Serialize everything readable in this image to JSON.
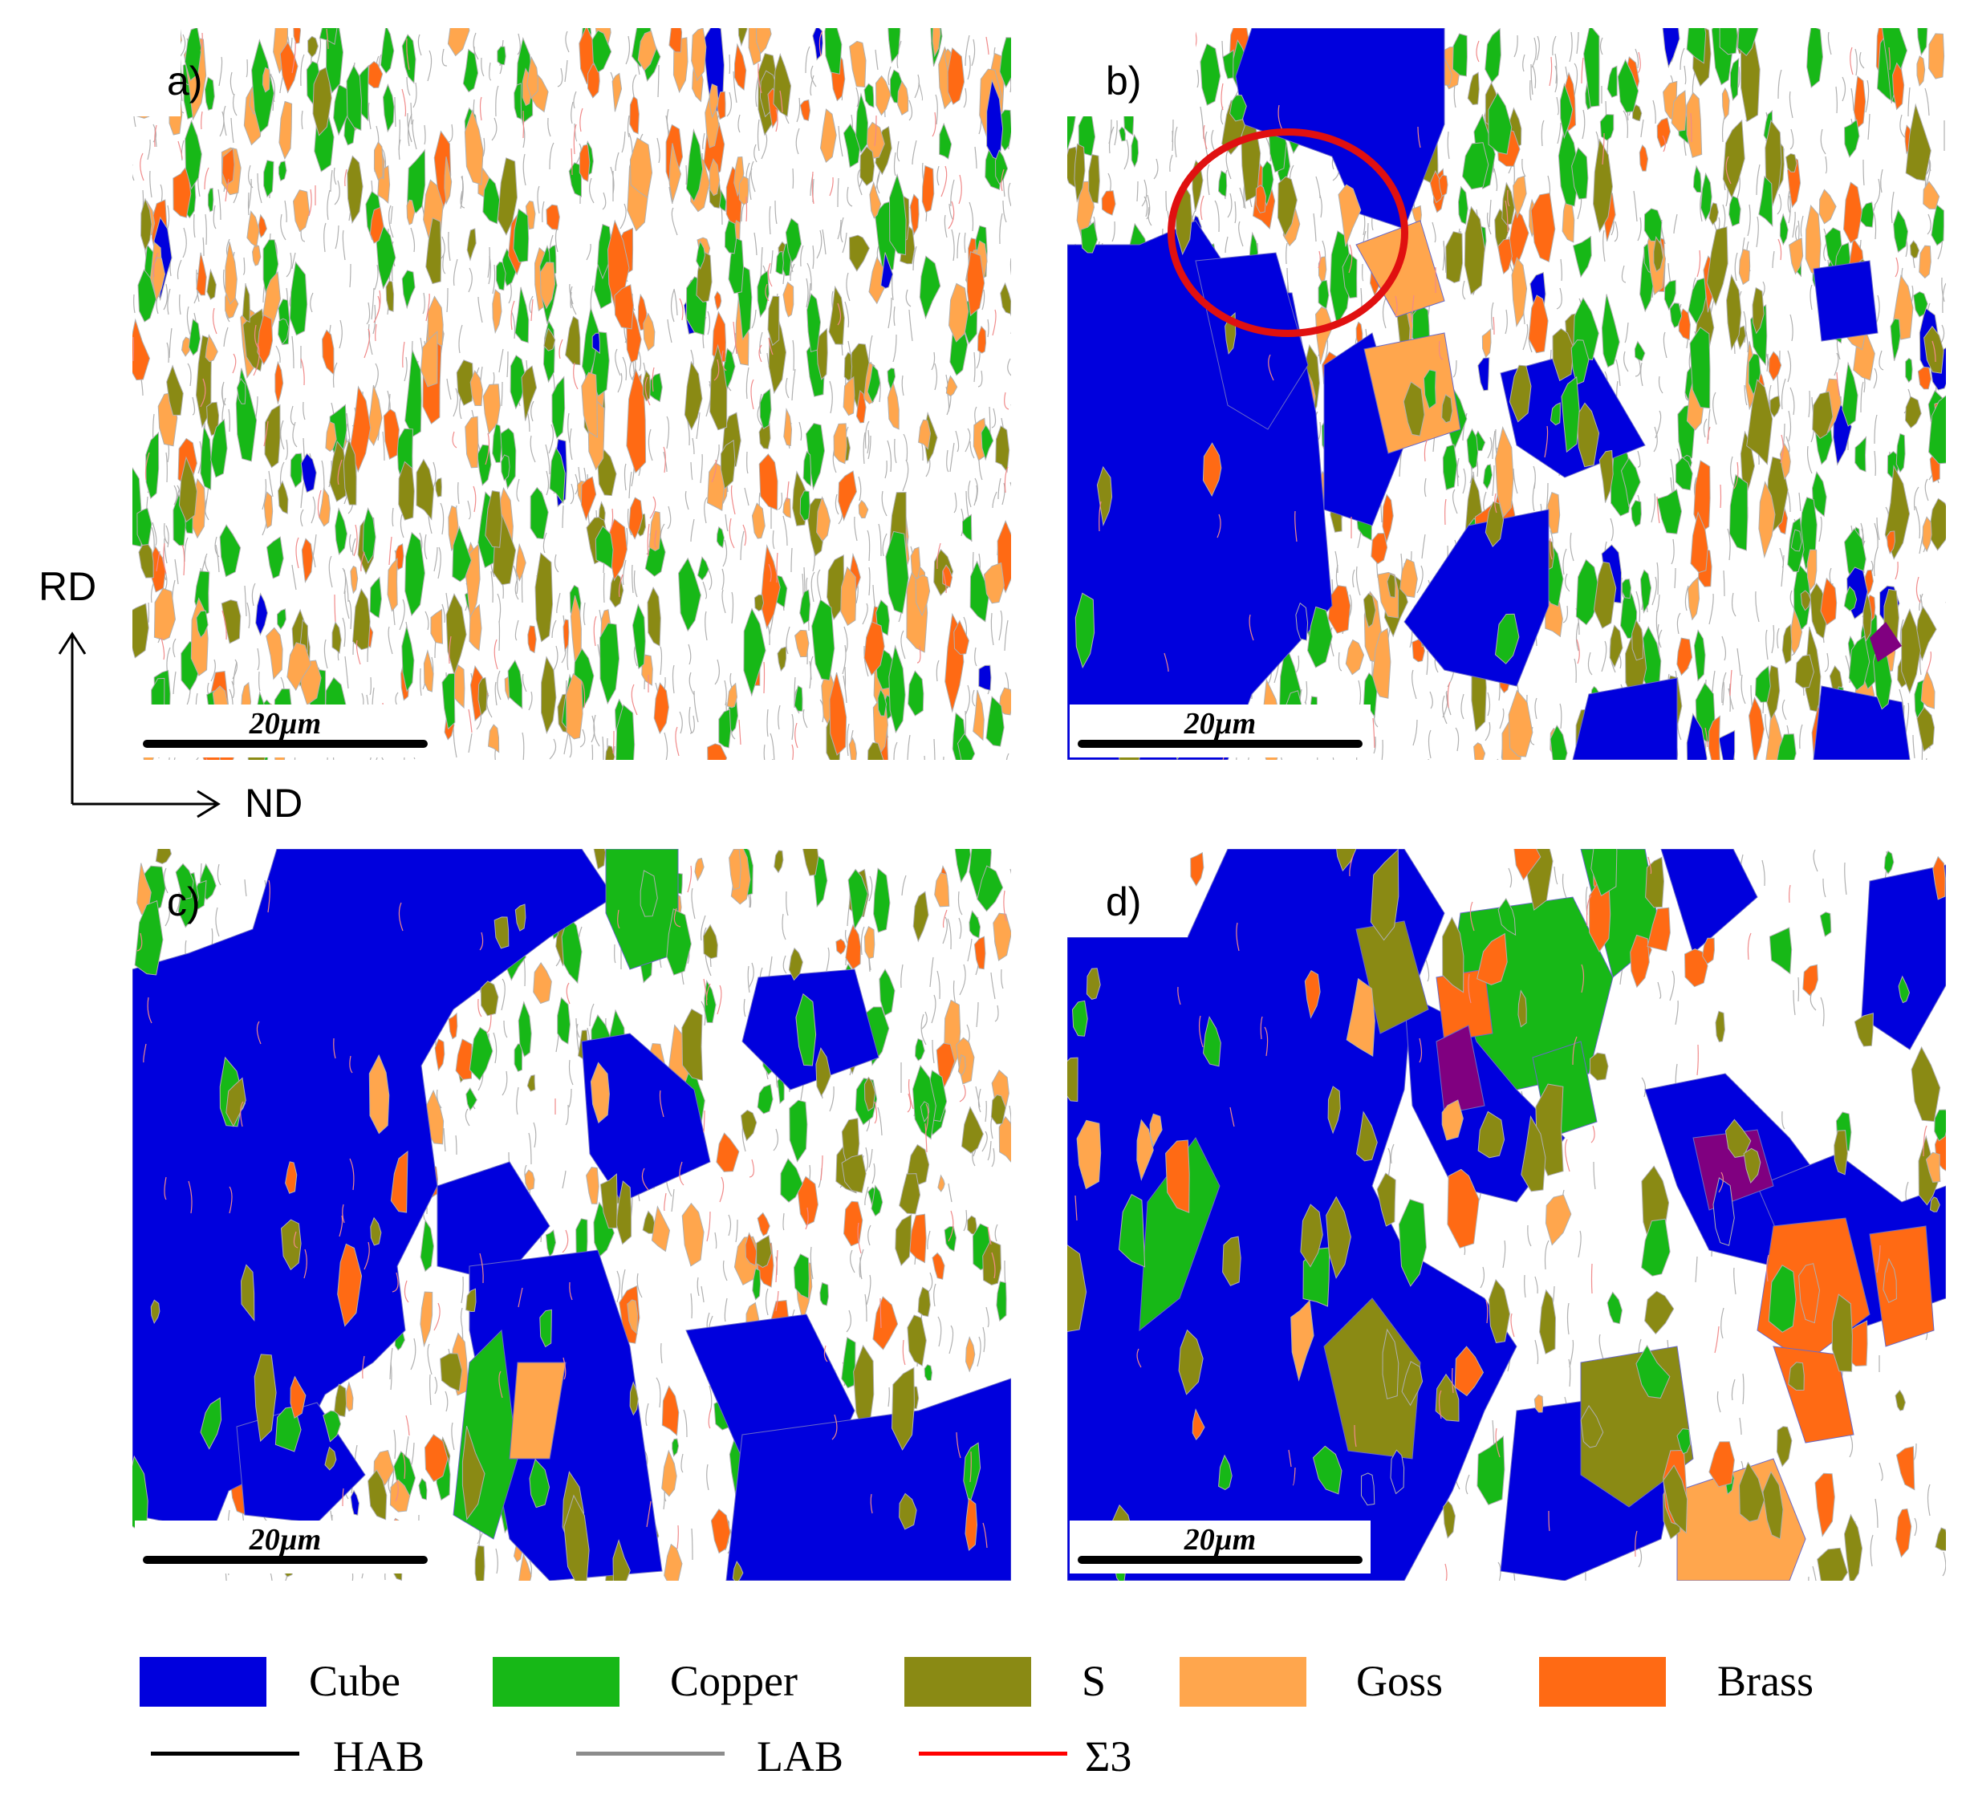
{
  "panels": [
    {
      "label": "a)",
      "scale_bar": "20µm"
    },
    {
      "label": "b)",
      "scale_bar": "20µm"
    },
    {
      "label": "c)",
      "scale_bar": "20µm"
    },
    {
      "label": "d)",
      "scale_bar": "20µm"
    }
  ],
  "axes": {
    "vertical": "RD",
    "horizontal": "ND"
  },
  "legend": {
    "textures": [
      {
        "name": "Cube",
        "color": "#0000dd"
      },
      {
        "name": "Copper",
        "color": "#17b817"
      },
      {
        "name": "S",
        "color": "#8a8a14"
      },
      {
        "name": "Goss",
        "color": "#ffa64d"
      },
      {
        "name": "Brass",
        "color": "#ff6a14"
      }
    ],
    "boundaries": [
      {
        "name": "HAB",
        "color": "#000000"
      },
      {
        "name": "LAB",
        "color": "#8c8c8c"
      },
      {
        "name": "Σ3",
        "color": "#ff0000"
      }
    ]
  }
}
